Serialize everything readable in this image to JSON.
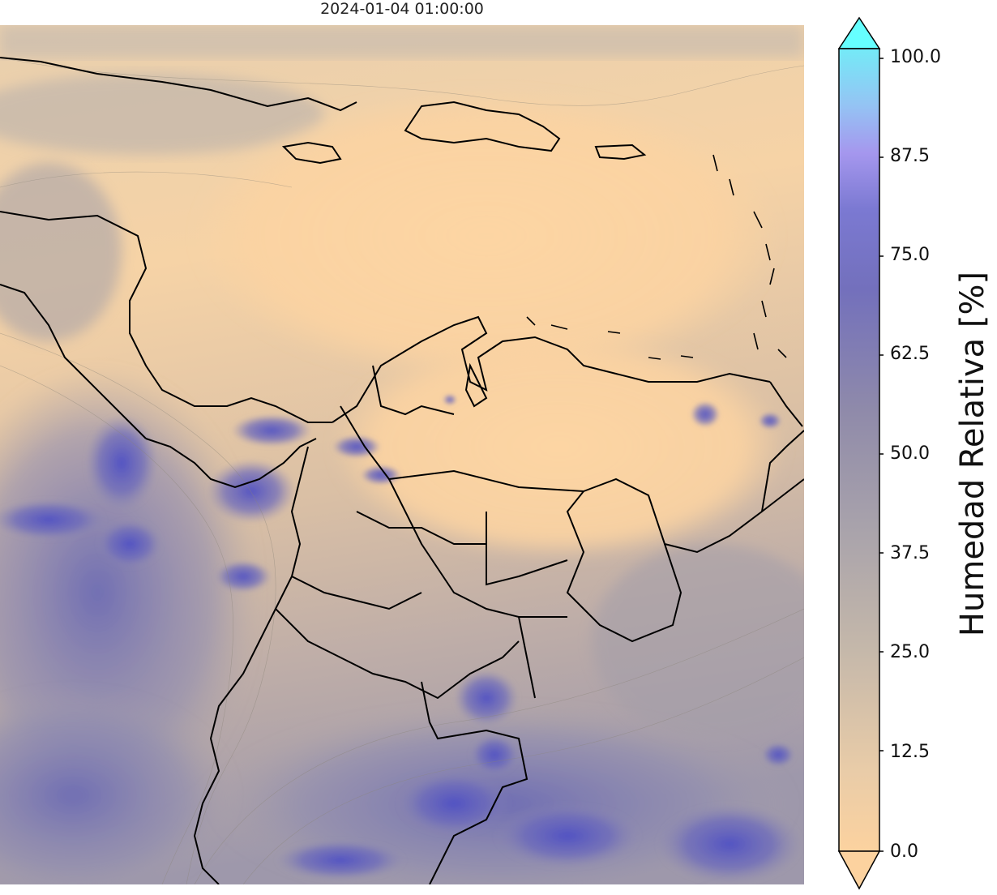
{
  "title": "2024-01-04 01:00:00",
  "colorbar": {
    "label": "Humedad Relativa [%]",
    "ticks": [
      "100.0",
      "87.5",
      "75.0",
      "62.5",
      "50.0",
      "37.5",
      "25.0",
      "12.5",
      "0.0"
    ],
    "range": [
      0,
      100
    ],
    "colors": {
      "low": "#fcd29f",
      "mid": "#9c98a8",
      "high_mid": "#6f6ec8",
      "high": "#9d91ef",
      "top": "#66ffff"
    }
  },
  "map": {
    "land_dry_color": "#fcd6a6",
    "humid_color": "#7e7ab0",
    "very_humid_color": "#5a5ccc",
    "border_color": "#000000"
  }
}
